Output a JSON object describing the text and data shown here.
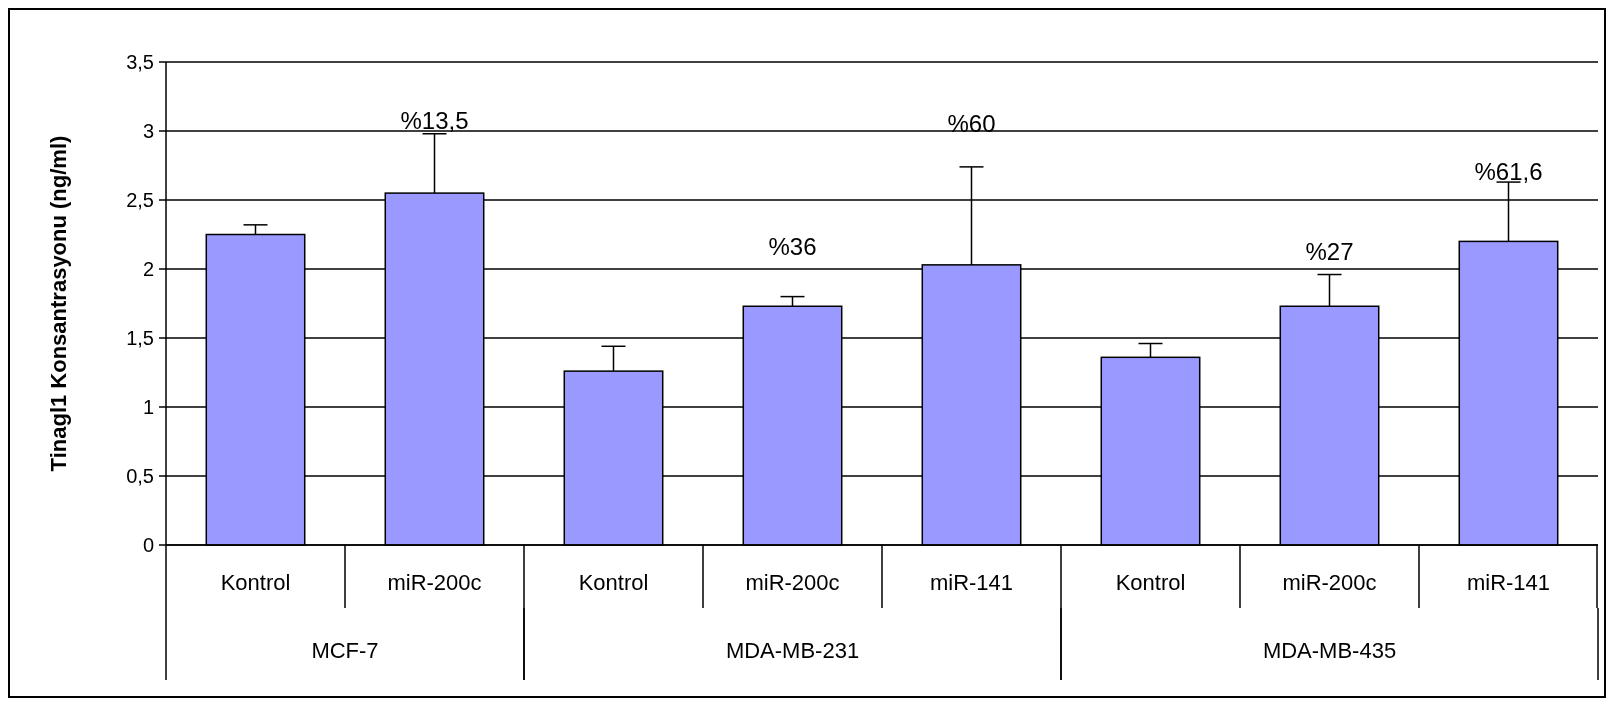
{
  "chart_data": {
    "type": "bar",
    "ylabel": "Tinagl1 Konsantrasyonu (ng/ml)",
    "categories": [
      "Kontrol",
      "miR-200c",
      "Kontrol",
      "miR-200c",
      "miR-141",
      "Kontrol",
      "miR-200c",
      "miR-141"
    ],
    "values": [
      2.25,
      2.55,
      1.26,
      1.73,
      2.03,
      1.36,
      1.73,
      2.2
    ],
    "errors": [
      [
        2.25,
        2.32
      ],
      [
        2.55,
        2.98
      ],
      [
        1.26,
        1.44
      ],
      [
        1.73,
        1.8
      ],
      [
        2.03,
        2.74
      ],
      [
        1.36,
        1.46
      ],
      [
        1.73,
        1.96
      ],
      [
        2.2,
        2.63
      ]
    ],
    "color": "#9999ff",
    "ylim": [
      0,
      3.5
    ],
    "yticks": [
      0,
      {
        "value": 0.5,
        "label": "0,5"
      },
      1,
      {
        "value": 1.5,
        "label": "1,5"
      },
      2,
      {
        "value": 2.5,
        "label": "2,5"
      },
      3,
      {
        "value": 3.5,
        "label": "3,5"
      }
    ],
    "grid": "y",
    "annotations": [
      "MCF-7",
      "MDA-MB-231",
      "MDA-MB-435",
      "%13,5",
      "%36",
      "%60",
      "%27",
      "%61,6"
    ]
  }
}
